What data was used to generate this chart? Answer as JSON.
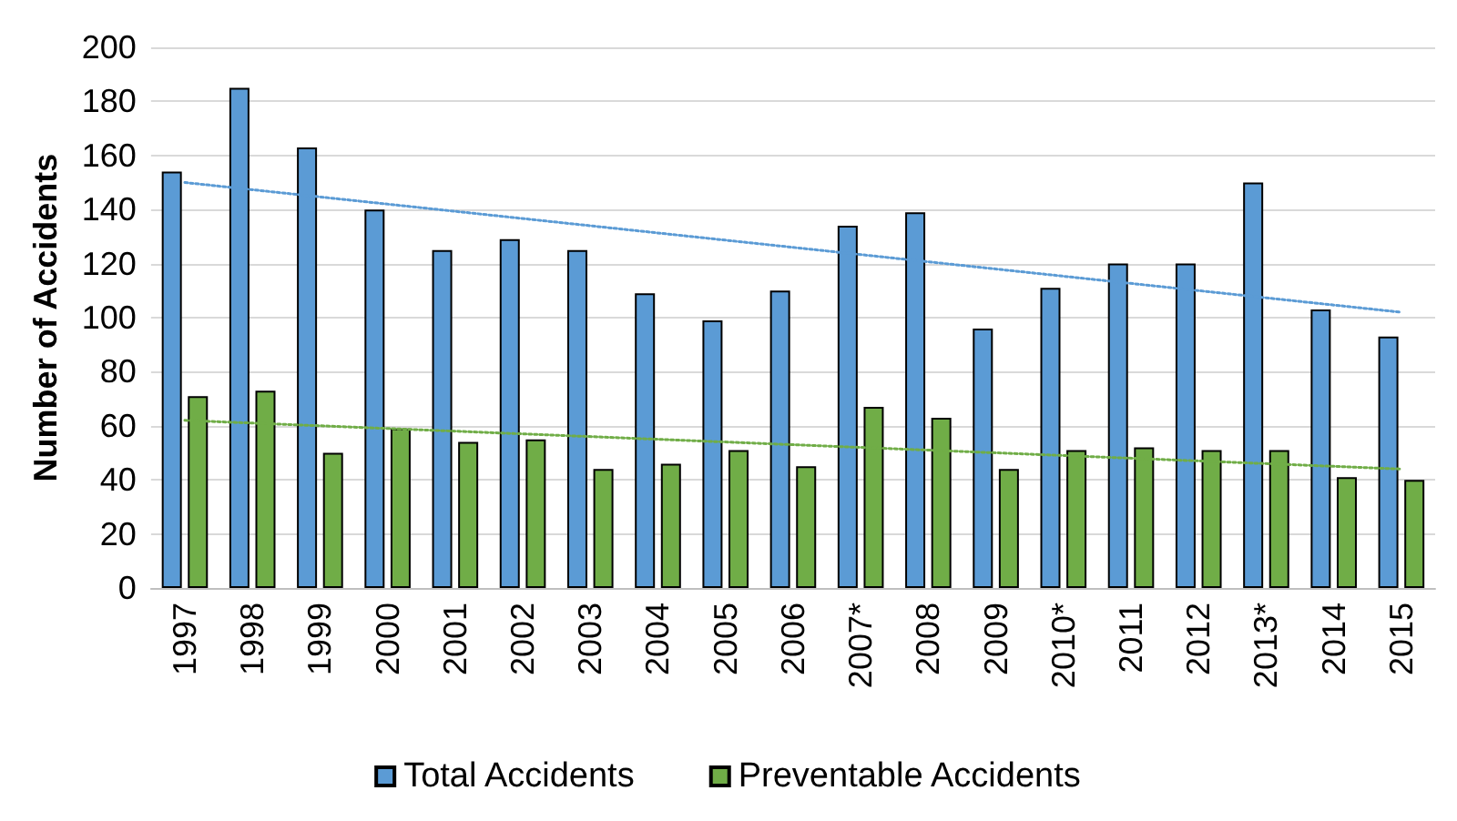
{
  "chart_data": {
    "type": "bar",
    "ylabel": "Number of Accidents",
    "categories": [
      "1997",
      "1998",
      "1999",
      "2000",
      "2001",
      "2002",
      "2003",
      "2004",
      "2005",
      "2006",
      "2007*",
      "2008",
      "2009",
      "2010*",
      "2011",
      "2012",
      "2013*",
      "2014",
      "2015"
    ],
    "series": [
      {
        "name": "Total Accidents",
        "color": "#5b9bd5",
        "values": [
          154,
          185,
          163,
          140,
          125,
          129,
          125,
          109,
          99,
          110,
          134,
          139,
          96,
          111,
          120,
          120,
          150,
          103,
          93
        ]
      },
      {
        "name": "Preventable Accidents",
        "color": "#70ad47",
        "values": [
          71,
          73,
          50,
          59,
          54,
          55,
          44,
          46,
          51,
          45,
          67,
          63,
          44,
          51,
          52,
          51,
          51,
          41,
          40
        ]
      },
      {
        "type": "line",
        "color": "#5b9bd5",
        "values": [
          150,
          null,
          null,
          null,
          null,
          null,
          null,
          null,
          null,
          null,
          null,
          null,
          null,
          null,
          null,
          null,
          null,
          null,
          102
        ],
        "line_style": "dotted",
        "marker": "none"
      },
      {
        "type": "line",
        "color": "#70ad47",
        "values": [
          62,
          null,
          null,
          null,
          null,
          null,
          null,
          null,
          null,
          null,
          null,
          null,
          null,
          null,
          null,
          null,
          null,
          null,
          44
        ],
        "line_style": "dotted",
        "marker": "none"
      }
    ],
    "ylim": [
      0,
      200
    ],
    "yticks": [
      0,
      20,
      40,
      60,
      80,
      100,
      120,
      140,
      160,
      180,
      200
    ],
    "grid": "y",
    "legend": "bottom"
  }
}
